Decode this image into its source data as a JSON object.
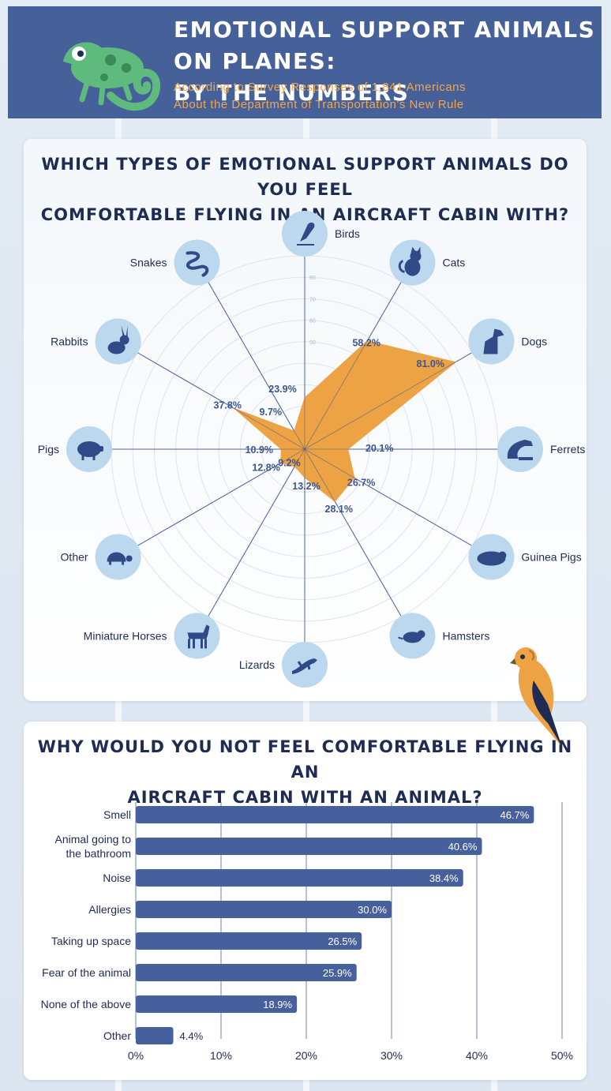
{
  "header": {
    "title_line1": "EMOTIONAL SUPPORT ANIMALS ON PLANES:",
    "title_line2": "BY THE NUMBERS",
    "subtitle_line1": "According to Survey Responses of 1,841 Americans",
    "subtitle_line2": "About the Department of Transportation's New Rule"
  },
  "colors": {
    "header_bg": "#46609a",
    "accent_orange": "#f0a64a",
    "radar_fill": "#eda243",
    "bar_fill": "#45609c",
    "icon_circle": "#bcd8ee",
    "icon_color": "#2f4a87",
    "text_dark": "#1e2b52"
  },
  "chart_data": [
    {
      "type": "radar",
      "title_line1": "WHICH TYPES OF EMOTIONAL SUPPORT ANIMALS DO YOU FEEL",
      "title_line2": "COMFORTABLE FLYING IN AN AIRCRAFT CABIN WITH?",
      "categories": [
        "Birds",
        "Cats",
        "Dogs",
        "Ferrets",
        "Guinea Pigs",
        "Hamsters",
        "Lizards",
        "Miniature Horses",
        "Other",
        "Pigs",
        "Rabbits",
        "Snakes"
      ],
      "icons": [
        "bird-icon",
        "cat-icon",
        "dog-icon",
        "ferret-icon",
        "guinea-pig-icon",
        "hamster-icon",
        "lizard-icon",
        "horse-icon",
        "turtle-icon",
        "pig-icon",
        "rabbit-icon",
        "snake-icon"
      ],
      "values": [
        23.9,
        58.2,
        81.0,
        20.1,
        26.7,
        28.1,
        13.2,
        9.2,
        12.8,
        10.9,
        37.8,
        9.7
      ],
      "value_labels": [
        "23.9%",
        "58.2%",
        "81.0%",
        "20.1%",
        "26.7%",
        "28.1%",
        "13.2%",
        "9.2%",
        "12.8%",
        "10.9%",
        "37.8%",
        "9.7%"
      ],
      "ring_labels": [
        "50",
        "60",
        "70",
        "80"
      ],
      "rmax": 90
    },
    {
      "type": "bar",
      "orientation": "horizontal",
      "title_line1": "WHY WOULD YOU NOT FEEL COMFORTABLE FLYING IN AN",
      "title_line2": "AIRCRAFT CABIN WITH AN ANIMAL?",
      "categories": [
        [
          "Smell"
        ],
        [
          "Animal going to",
          "the bathroom"
        ],
        [
          "Noise"
        ],
        [
          "Allergies"
        ],
        [
          "Taking up space"
        ],
        [
          "Fear of the animal"
        ],
        [
          "None of the above"
        ],
        [
          "Other"
        ]
      ],
      "values": [
        46.7,
        40.6,
        38.4,
        30.0,
        26.5,
        25.9,
        18.9,
        4.4
      ],
      "value_labels": [
        "46.7%",
        "40.6%",
        "38.4%",
        "30.0%",
        "26.5%",
        "25.9%",
        "18.9%",
        "4.4%"
      ],
      "xticks": [
        "0%",
        "10%",
        "20%",
        "30%",
        "40%",
        "50%"
      ],
      "xlim": [
        0,
        50
      ]
    }
  ]
}
